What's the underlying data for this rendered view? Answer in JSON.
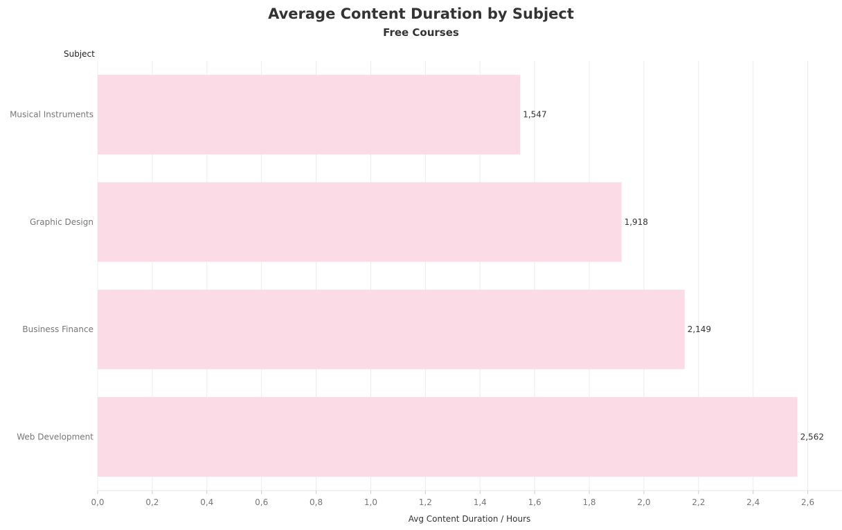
{
  "chart_data": {
    "type": "bar",
    "orientation": "horizontal",
    "title": "Average Content Duration by Subject",
    "subtitle": "Free Courses",
    "row_header": "Subject",
    "xlabel": "Avg Content Duration / Hours",
    "categories": [
      "Musical Instruments",
      "Graphic Design",
      "Business Finance",
      "Web Development"
    ],
    "values": [
      1.547,
      1.918,
      2.149,
      2.562
    ],
    "value_labels": [
      "1,547",
      "1,918",
      "2,149",
      "2,562"
    ],
    "xlim": [
      0,
      2.8
    ],
    "ticks": [
      0,
      0.2,
      0.4,
      0.6,
      0.8,
      1.0,
      1.2,
      1.4,
      1.6,
      1.8,
      2.0,
      2.2,
      2.4,
      2.6
    ],
    "tick_labels": [
      "0,0",
      "0,2",
      "0,4",
      "0,6",
      "0,8",
      "1,0",
      "1,2",
      "1,4",
      "1,6",
      "1,8",
      "2,0",
      "2,2",
      "2,4",
      "2,6"
    ],
    "grid": true,
    "bar_color": "#fbdce6",
    "grid_color": "#ececec"
  }
}
